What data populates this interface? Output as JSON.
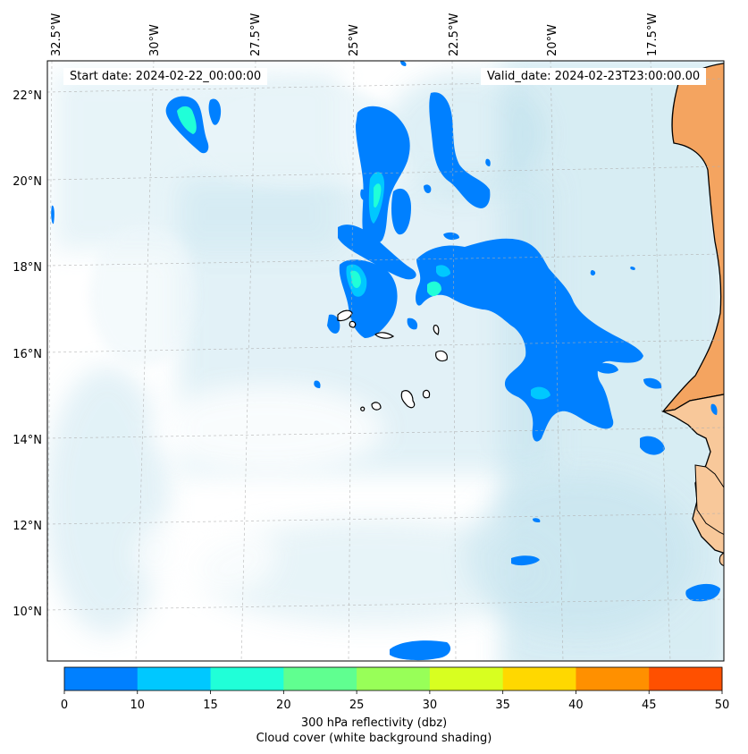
{
  "header": {
    "start_date": "Start date: 2024-02-22_00:00:00",
    "valid_date": "Valid_date: 2024-02-23T23:00:00.00"
  },
  "map": {
    "longitude_labels": [
      "32.5°W",
      "30°W",
      "27.5°W",
      "25°W",
      "22.5°W",
      "20°W",
      "17.5°W"
    ],
    "latitude_labels": [
      "22°N",
      "20°N",
      "18°N",
      "16°N",
      "14°N",
      "12°N",
      "10°N"
    ],
    "colors": {
      "land": "#f4a460",
      "land_light": "#f8c89a",
      "cloud": "#a9d7e6",
      "refl_0_10": "#0080ff",
      "refl_10_15": "#00c8ff",
      "refl_15_20": "#20ffd8"
    }
  },
  "colorbar": {
    "ticks": [
      "0",
      "10",
      "15",
      "20",
      "25",
      "30",
      "35",
      "40",
      "45",
      "50"
    ],
    "colors": [
      "#0080ff",
      "#00c8ff",
      "#20ffd8",
      "#60ff90",
      "#98ff58",
      "#d8ff20",
      "#ffd800",
      "#ff9000",
      "#ff5000"
    ],
    "label_line1": "300 hPa reflectivity (dbz)",
    "label_line2": "Cloud cover (white background shading)"
  }
}
